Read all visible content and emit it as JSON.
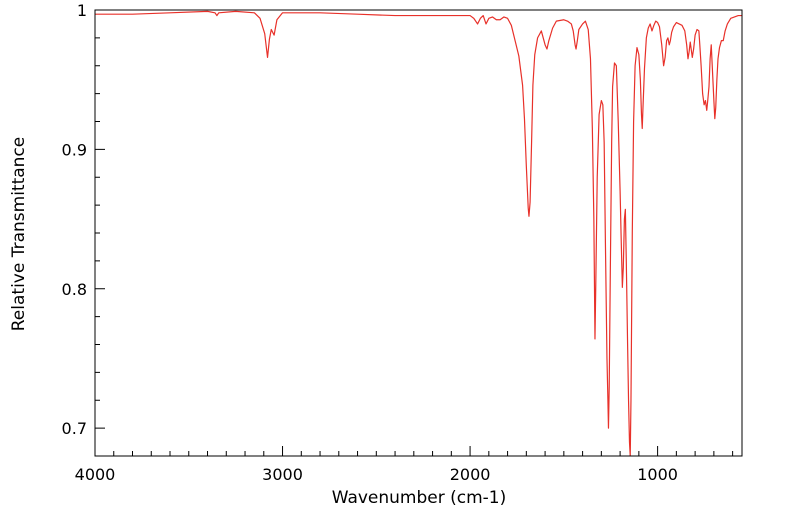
{
  "chart_data": {
    "type": "line",
    "title": "",
    "xlabel": "Wavenumber (cm-1)",
    "ylabel": "Relative Transmittance",
    "xlim": [
      4000,
      550
    ],
    "ylim": [
      0.68,
      1.0
    ],
    "x_ticks": [
      4000,
      3000,
      2000,
      1000
    ],
    "x_tick_labels": [
      "4000",
      "3000",
      "2000",
      "1000"
    ],
    "y_ticks": [
      0.7,
      0.8,
      0.9,
      1.0
    ],
    "y_tick_labels": [
      "0.7",
      "0.8",
      "0.9",
      "1"
    ],
    "grid": false,
    "legend": "none",
    "series": [
      {
        "color": "#e8312a",
        "points": [
          [
            4000,
            0.997
          ],
          [
            3800,
            0.997
          ],
          [
            3600,
            0.998
          ],
          [
            3400,
            0.999
          ],
          [
            3360,
            0.998
          ],
          [
            3350,
            0.996
          ],
          [
            3340,
            0.998
          ],
          [
            3250,
            0.999
          ],
          [
            3150,
            0.998
          ],
          [
            3120,
            0.994
          ],
          [
            3095,
            0.983
          ],
          [
            3080,
            0.966
          ],
          [
            3070,
            0.979
          ],
          [
            3060,
            0.986
          ],
          [
            3045,
            0.982
          ],
          [
            3030,
            0.993
          ],
          [
            3000,
            0.998
          ],
          [
            2800,
            0.998
          ],
          [
            2600,
            0.997
          ],
          [
            2400,
            0.996
          ],
          [
            2300,
            0.996
          ],
          [
            2200,
            0.996
          ],
          [
            2100,
            0.996
          ],
          [
            2000,
            0.996
          ],
          [
            1980,
            0.994
          ],
          [
            1960,
            0.99
          ],
          [
            1945,
            0.994
          ],
          [
            1930,
            0.996
          ],
          [
            1915,
            0.99
          ],
          [
            1900,
            0.994
          ],
          [
            1880,
            0.995
          ],
          [
            1860,
            0.993
          ],
          [
            1840,
            0.993
          ],
          [
            1820,
            0.995
          ],
          [
            1800,
            0.994
          ],
          [
            1780,
            0.989
          ],
          [
            1760,
            0.978
          ],
          [
            1740,
            0.967
          ],
          [
            1720,
            0.946
          ],
          [
            1710,
            0.922
          ],
          [
            1700,
            0.888
          ],
          [
            1690,
            0.858
          ],
          [
            1686,
            0.852
          ],
          [
            1680,
            0.862
          ],
          [
            1672,
            0.905
          ],
          [
            1665,
            0.946
          ],
          [
            1655,
            0.968
          ],
          [
            1640,
            0.98
          ],
          [
            1620,
            0.985
          ],
          [
            1600,
            0.975
          ],
          [
            1590,
            0.972
          ],
          [
            1580,
            0.978
          ],
          [
            1560,
            0.987
          ],
          [
            1540,
            0.992
          ],
          [
            1500,
            0.993
          ],
          [
            1480,
            0.992
          ],
          [
            1460,
            0.99
          ],
          [
            1450,
            0.985
          ],
          [
            1440,
            0.975
          ],
          [
            1435,
            0.972
          ],
          [
            1428,
            0.978
          ],
          [
            1420,
            0.986
          ],
          [
            1400,
            0.99
          ],
          [
            1385,
            0.992
          ],
          [
            1370,
            0.986
          ],
          [
            1358,
            0.965
          ],
          [
            1348,
            0.915
          ],
          [
            1340,
            0.85
          ],
          [
            1334,
            0.764
          ],
          [
            1330,
            0.8
          ],
          [
            1322,
            0.88
          ],
          [
            1312,
            0.925
          ],
          [
            1300,
            0.935
          ],
          [
            1292,
            0.932
          ],
          [
            1285,
            0.905
          ],
          [
            1278,
            0.83
          ],
          [
            1270,
            0.75
          ],
          [
            1265,
            0.72
          ],
          [
            1262,
            0.7
          ],
          [
            1258,
            0.73
          ],
          [
            1252,
            0.815
          ],
          [
            1245,
            0.905
          ],
          [
            1240,
            0.945
          ],
          [
            1230,
            0.962
          ],
          [
            1220,
            0.96
          ],
          [
            1210,
            0.92
          ],
          [
            1200,
            0.87
          ],
          [
            1195,
            0.84
          ],
          [
            1188,
            0.801
          ],
          [
            1183,
            0.815
          ],
          [
            1177,
            0.85
          ],
          [
            1172,
            0.857
          ],
          [
            1167,
            0.82
          ],
          [
            1160,
            0.76
          ],
          [
            1155,
            0.72
          ],
          [
            1150,
            0.69
          ],
          [
            1146,
            0.68
          ],
          [
            1142,
            0.72
          ],
          [
            1135,
            0.84
          ],
          [
            1128,
            0.92
          ],
          [
            1120,
            0.96
          ],
          [
            1110,
            0.973
          ],
          [
            1100,
            0.968
          ],
          [
            1092,
            0.95
          ],
          [
            1086,
            0.925
          ],
          [
            1082,
            0.915
          ],
          [
            1078,
            0.93
          ],
          [
            1070,
            0.958
          ],
          [
            1060,
            0.98
          ],
          [
            1050,
            0.987
          ],
          [
            1040,
            0.99
          ],
          [
            1030,
            0.985
          ],
          [
            1020,
            0.989
          ],
          [
            1010,
            0.992
          ],
          [
            1000,
            0.991
          ],
          [
            990,
            0.988
          ],
          [
            978,
            0.975
          ],
          [
            968,
            0.96
          ],
          [
            960,
            0.966
          ],
          [
            952,
            0.978
          ],
          [
            945,
            0.98
          ],
          [
            938,
            0.975
          ],
          [
            932,
            0.978
          ],
          [
            925,
            0.984
          ],
          [
            915,
            0.988
          ],
          [
            900,
            0.991
          ],
          [
            885,
            0.99
          ],
          [
            870,
            0.989
          ],
          [
            855,
            0.985
          ],
          [
            845,
            0.975
          ],
          [
            838,
            0.965
          ],
          [
            832,
            0.97
          ],
          [
            826,
            0.977
          ],
          [
            820,
            0.971
          ],
          [
            815,
            0.966
          ],
          [
            808,
            0.972
          ],
          [
            800,
            0.982
          ],
          [
            790,
            0.986
          ],
          [
            780,
            0.985
          ],
          [
            775,
            0.975
          ],
          [
            768,
            0.96
          ],
          [
            760,
            0.94
          ],
          [
            752,
            0.932
          ],
          [
            745,
            0.935
          ],
          [
            738,
            0.928
          ],
          [
            732,
            0.936
          ],
          [
            726,
            0.945
          ],
          [
            720,
            0.965
          ],
          [
            714,
            0.975
          ],
          [
            708,
            0.958
          ],
          [
            700,
            0.935
          ],
          [
            695,
            0.922
          ],
          [
            690,
            0.93
          ],
          [
            684,
            0.95
          ],
          [
            678,
            0.965
          ],
          [
            670,
            0.973
          ],
          [
            660,
            0.978
          ],
          [
            650,
            0.978
          ],
          [
            640,
            0.985
          ],
          [
            628,
            0.99
          ],
          [
            610,
            0.994
          ],
          [
            590,
            0.995
          ],
          [
            570,
            0.996
          ],
          [
            550,
            0.996
          ]
        ]
      }
    ]
  }
}
